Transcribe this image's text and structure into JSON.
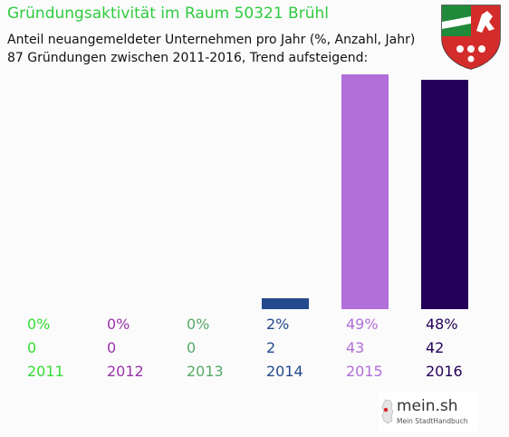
{
  "header": {
    "title": "Gründungsaktivität im Raum 50321 Brühl",
    "subtitle_line1": "Anteil neuangemeldeter Unternehmen pro Jahr (%, Anzahl, Jahr)",
    "subtitle_line2": "87 Gründungen zwischen 2011-2016, Trend aufsteigend:"
  },
  "brand": {
    "name": "mein.sh",
    "tagline": "Mein StadtHandbuch"
  },
  "emblem_icon": "nrw-coat-of-arms-icon",
  "chart_data": {
    "type": "bar",
    "categories": [
      "2011",
      "2012",
      "2013",
      "2014",
      "2015",
      "2016"
    ],
    "values": [
      0,
      0,
      0,
      2,
      43,
      42
    ],
    "percent_labels": [
      "0%",
      "0%",
      "0%",
      "2%",
      "49%",
      "48%"
    ],
    "count_labels": [
      "0",
      "0",
      "0",
      "2",
      "43",
      "42"
    ],
    "colors": [
      "#33dd33",
      "#9933aa",
      "#55aa66",
      "#234a8c",
      "#b06fd9",
      "#25005a"
    ],
    "ylim": [
      0,
      43
    ],
    "title": "Gründungsaktivität im Raum 50321 Brühl",
    "xlabel": "",
    "ylabel": ""
  }
}
